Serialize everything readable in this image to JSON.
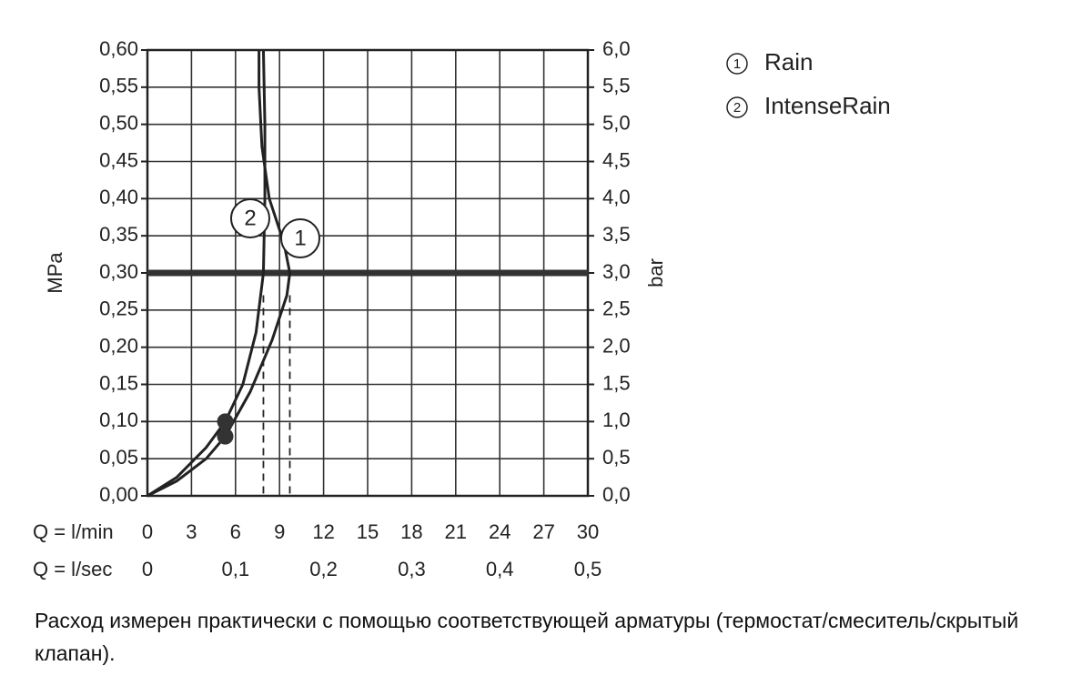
{
  "chart_data": {
    "type": "line",
    "y_label": "MPa",
    "y2_label": "bar",
    "x_label": "Q = l/min",
    "x2_label": "Q = l/sec",
    "footnote": "Расход измерен практически с помощью соответствующей арматуры (термостат/смеситель/скрытый клапан).",
    "xlim": [
      0,
      30
    ],
    "xticks": [
      0,
      3,
      6,
      9,
      12,
      15,
      18,
      21,
      24,
      27,
      30
    ],
    "x2lim": [
      0,
      0.5
    ],
    "x2ticks": [
      0,
      {
        "value": 0.1,
        "label": "0,1"
      },
      {
        "value": 0.2,
        "label": "0,2"
      },
      {
        "value": 0.3,
        "label": "0,3"
      },
      {
        "value": 0.4,
        "label": "0,4"
      },
      {
        "value": 0.5,
        "label": "0,5"
      }
    ],
    "ylim": [
      0,
      0.6
    ],
    "yticks": [
      {
        "value": 0,
        "label": "0,00"
      },
      {
        "value": 0.05,
        "label": "0,05"
      },
      {
        "value": 0.1,
        "label": "0,10"
      },
      {
        "value": 0.15,
        "label": "0,15"
      },
      {
        "value": 0.2,
        "label": "0,20"
      },
      {
        "value": 0.25,
        "label": "0,25"
      },
      {
        "value": 0.3,
        "label": "0,30"
      },
      {
        "value": 0.35,
        "label": "0,35"
      },
      {
        "value": 0.4,
        "label": "0,40"
      },
      {
        "value": 0.45,
        "label": "0,45"
      },
      {
        "value": 0.5,
        "label": "0,50"
      },
      {
        "value": 0.55,
        "label": "0,55"
      },
      {
        "value": 0.6,
        "label": "0,60"
      }
    ],
    "y2lim": [
      0,
      6
    ],
    "y2ticks": [
      {
        "value": 0,
        "label": "0,0"
      },
      {
        "value": 0.5,
        "label": "0,5"
      },
      {
        "value": 1,
        "label": "1,0"
      },
      {
        "value": 1.5,
        "label": "1,5"
      },
      {
        "value": 2,
        "label": "2,0"
      },
      {
        "value": 2.5,
        "label": "2,5"
      },
      {
        "value": 3,
        "label": "3,0"
      },
      {
        "value": 3.5,
        "label": "3,5"
      },
      {
        "value": 4,
        "label": "4,0"
      },
      {
        "value": 4.5,
        "label": "4,5"
      },
      {
        "value": 5,
        "label": "5,0"
      },
      {
        "value": 5.5,
        "label": "5,5"
      },
      {
        "value": 6,
        "label": "6,0"
      }
    ],
    "grid": true,
    "reference_y": 0.3,
    "series": [
      {
        "name": "Rain",
        "marker": "1",
        "color": "#222222",
        "x": [
          0,
          2,
          4,
          5.3,
          7,
          8.5,
          9.5,
          9.7,
          9.3,
          8.3,
          7.8,
          7.6,
          7.6
        ],
        "values": [
          0,
          0.02,
          0.05,
          0.08,
          0.14,
          0.21,
          0.27,
          0.3,
          0.34,
          0.4,
          0.47,
          0.55,
          0.6
        ],
        "point": {
          "x": 5.3,
          "y": 0.08
        },
        "flow_at_reference": 9.7,
        "dash_top": 0.27
      },
      {
        "name": "IntenseRain",
        "marker": "2",
        "color": "#222222",
        "x": [
          0,
          2,
          4,
          5.3,
          6.5,
          7.4,
          7.9,
          8.0,
          8.0,
          7.9
        ],
        "values": [
          0,
          0.025,
          0.065,
          0.1,
          0.15,
          0.22,
          0.3,
          0.4,
          0.5,
          0.6
        ],
        "point": {
          "x": 5.3,
          "y": 0.1
        },
        "flow_at_reference": 7.9,
        "dash_top": 0.27
      }
    ]
  }
}
